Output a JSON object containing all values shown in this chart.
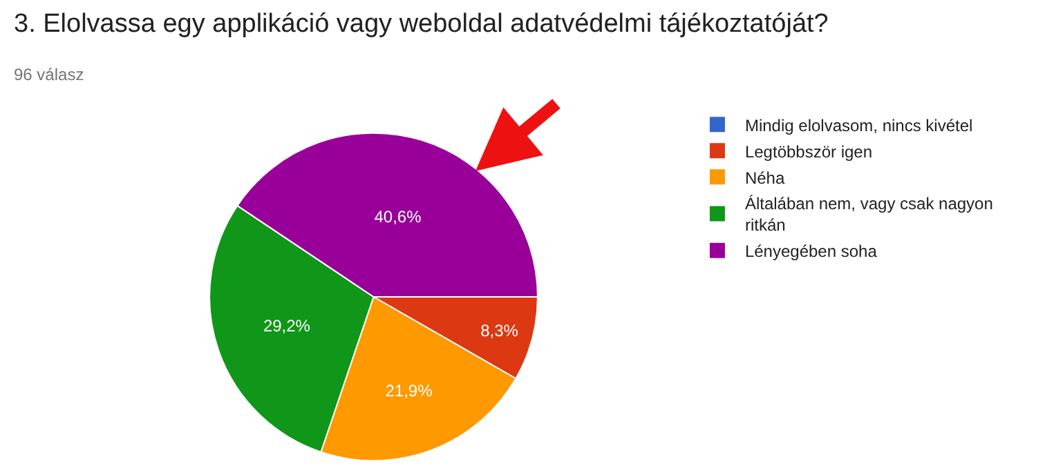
{
  "chart_data": {
    "type": "pie",
    "title": "3. Elolvassa egy applikáció vagy weboldal adatvédelmi tájékoztatóját?",
    "subtitle": "96 válasz",
    "categories": [
      "Mindig elolvasom, nincs kivétel",
      "Legtöbbször igen",
      "Néha",
      "Általában nem, vagy csak nagyon ritkán",
      "Lényegében soha"
    ],
    "values": [
      0,
      8.3,
      21.9,
      29.2,
      40.6
    ],
    "colors": [
      "#3366cc",
      "#dc3912",
      "#ff9900",
      "#109618",
      "#990099"
    ],
    "value_labels": [
      null,
      "8,3%",
      "21,9%",
      "29,2%",
      "40,6%"
    ],
    "legend": "right"
  }
}
